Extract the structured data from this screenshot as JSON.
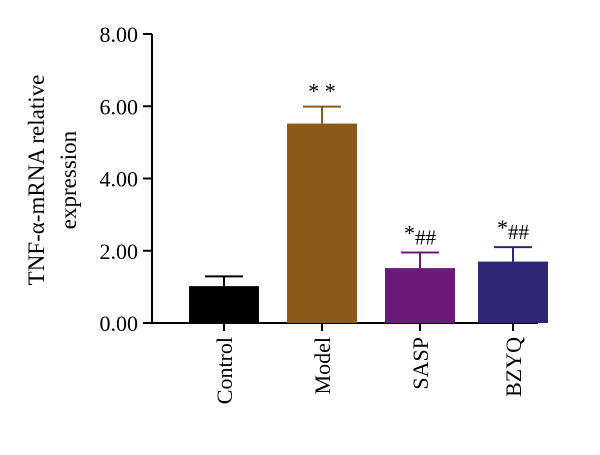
{
  "chart_data": {
    "type": "bar",
    "title": "",
    "ylabel_line1": "TNF-α-mRNA relative",
    "ylabel_line2": "expression",
    "xlabel": "",
    "ylim": [
      0,
      8
    ],
    "yticks": [
      0,
      2,
      4,
      6,
      8
    ],
    "ytick_labels": [
      "0.00",
      "2.00",
      "4.00",
      "6.00",
      "8.00"
    ],
    "categories": [
      "Control",
      "Model",
      "SASP",
      "BZYQ"
    ],
    "values": [
      1.02,
      5.52,
      1.52,
      1.7
    ],
    "errors": [
      0.27,
      0.47,
      0.43,
      0.4
    ],
    "annotations": [
      {
        "stars": "",
        "hashes": ""
      },
      {
        "stars": "* *",
        "hashes": ""
      },
      {
        "stars": "*",
        "hashes": "##"
      },
      {
        "stars": "*",
        "hashes": "##"
      }
    ],
    "colors": [
      "#000000",
      "#8B5A1B",
      "#6A1B7A",
      "#2E2676"
    ],
    "grid": false,
    "legend": "none"
  }
}
